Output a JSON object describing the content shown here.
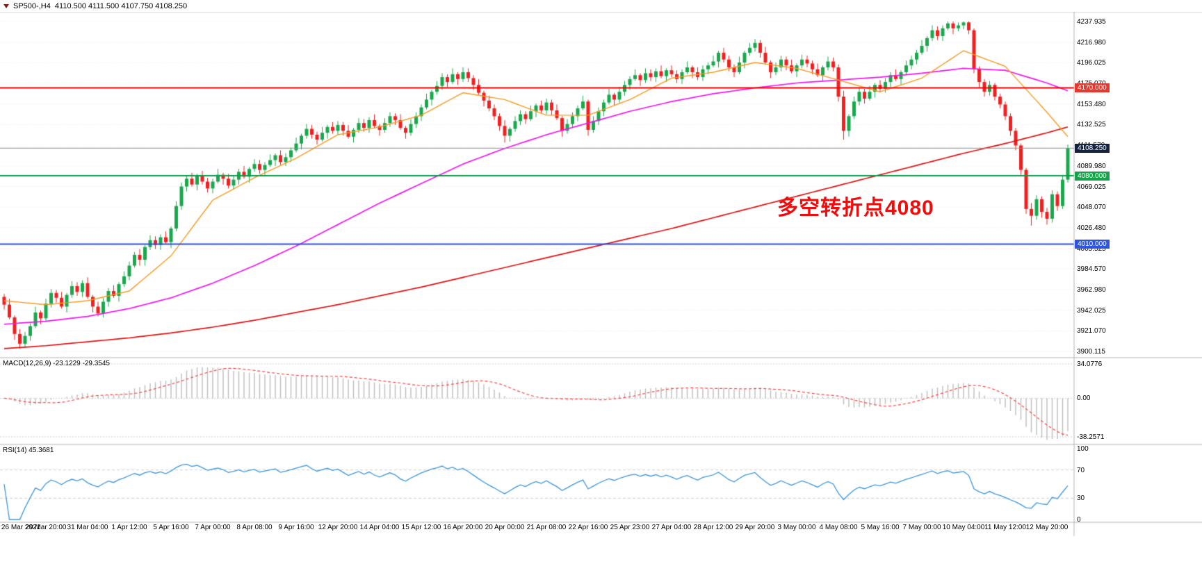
{
  "window": {
    "title_bar": {
      "icon": "chart-symbol-icon",
      "text": "SP500-,H4  4110.500 4111.500 4107.750 4108.250"
    }
  },
  "annotation": {
    "text": "多空转折点4080",
    "color": "#f30b0b"
  },
  "levels": [
    {
      "type": "resistance",
      "price": 4170.0,
      "label": "4170.000",
      "color": "#f00000",
      "tag_color": "#e23a2e",
      "width": 2
    },
    {
      "type": "current-price",
      "price": 4108.25,
      "label": "4108.250",
      "color": "#8c8c8c",
      "tag_color": "#14223d",
      "width": 1
    },
    {
      "type": "pivot",
      "price": 4080.0,
      "label": "4080.000",
      "color": "#009e48",
      "tag_color": "#15a24b",
      "width": 2
    },
    {
      "type": "support",
      "price": 4010.0,
      "label": "4010.000",
      "color": "#2e4fd6",
      "tag_color": "#2e55dd",
      "width": 2
    }
  ],
  "y_axis": {
    "top_price": 4237.935,
    "bottom_price": 3900.115,
    "labels": [
      "4237.935",
      "4216.980",
      "4196.025",
      "4175.070",
      "4153.480",
      "4132.525",
      "4111.570",
      "4089.980",
      "4069.025",
      "4048.070",
      "4026.480",
      "4005.525",
      "3984.570",
      "3962.980",
      "3942.025",
      "3921.070",
      "3900.115"
    ]
  },
  "macd": {
    "label": "MACD(12,26,9) -23.1229 -29.3545",
    "params": [
      12,
      26,
      9
    ],
    "value_main": -23.1229,
    "value_signal": -29.3545,
    "axis_values": [
      34.0776,
      0,
      -38.2571
    ],
    "axis_labels": [
      "34.0776",
      "0.00",
      "-38.2571"
    ],
    "histogram_color": "#bdbdbd",
    "signal_color": "#ff4040"
  },
  "rsi": {
    "label": "RSI(14) 45.3681",
    "period": 14,
    "value": 45.3681,
    "axis_values": [
      100,
      70,
      30,
      0
    ],
    "axis_labels": [
      "100",
      "70",
      "30",
      "0"
    ],
    "levels": [
      70,
      30
    ],
    "line_color": "#3a95da"
  },
  "chart_data": {
    "type": "candlestick",
    "symbol": "SP500-",
    "timeframe": "H4",
    "ohlc_display": {
      "open": "4110.500",
      "high": "4111.500",
      "low": "4107.750",
      "close": "4108.250"
    },
    "price_range": [
      3900.115,
      4237.935
    ],
    "bull_color": "#19a84c",
    "bear_color": "#ef2020",
    "x_labels": [
      "26 Mar 2021",
      "29 Mar 20:00",
      "31 Mar 04:00",
      "1 Apr 12:00",
      "5 Apr 16:00",
      "7 Apr 00:00",
      "8 Apr 08:00",
      "9 Apr 16:00",
      "12 Apr 20:00",
      "14 Apr 04:00",
      "15 Apr 12:00",
      "16 Apr 20:00",
      "20 Apr 00:00",
      "21 Apr 08:00",
      "22 Apr 16:00",
      "25 Apr 23:00",
      "27 Apr 04:00",
      "28 Apr 12:00",
      "29 Apr 20:00",
      "3 May 00:00",
      "4 May 08:00",
      "5 May 16:00",
      "7 May 00:00",
      "10 May 04:00",
      "11 May 12:00",
      "12 May 20:00"
    ],
    "candles_per_x_label": 8,
    "candles": [
      [
        3956,
        3959,
        3943,
        3948
      ],
      [
        3948,
        3954,
        3933,
        3935
      ],
      [
        3935,
        3937,
        3912,
        3918
      ],
      [
        3918,
        3923,
        3903,
        3908
      ],
      [
        3908,
        3920,
        3904,
        3916
      ],
      [
        3916,
        3929,
        3911,
        3926
      ],
      [
        3926,
        3946,
        3924,
        3940
      ],
      [
        3940,
        3942,
        3928,
        3934
      ],
      [
        3934,
        3954,
        3931,
        3949
      ],
      [
        3949,
        3964,
        3945,
        3960
      ],
      [
        3960,
        3963,
        3950,
        3955
      ],
      [
        3955,
        3961,
        3944,
        3946
      ],
      [
        3946,
        3960,
        3940,
        3958
      ],
      [
        3958,
        3972,
        3955,
        3967
      ],
      [
        3967,
        3971,
        3957,
        3961
      ],
      [
        3961,
        3973,
        3956,
        3970
      ],
      [
        3970,
        3976,
        3954,
        3956
      ],
      [
        3956,
        3958,
        3940,
        3946
      ],
      [
        3946,
        3951,
        3936,
        3939
      ],
      [
        3939,
        3955,
        3935,
        3951
      ],
      [
        3951,
        3965,
        3946,
        3962
      ],
      [
        3962,
        3968,
        3955,
        3957
      ],
      [
        3957,
        3971,
        3951,
        3969
      ],
      [
        3969,
        3982,
        3966,
        3977
      ],
      [
        3977,
        3992,
        3973,
        3988
      ],
      [
        3988,
        4002,
        3986,
        3999
      ],
      [
        3999,
        4005,
        3988,
        3994
      ],
      [
        3994,
        4009,
        3988,
        4007
      ],
      [
        4007,
        4019,
        4004,
        4014
      ],
      [
        4014,
        4018,
        4005,
        4009
      ],
      [
        4009,
        4020,
        4004,
        4017
      ],
      [
        4017,
        4023,
        4010,
        4012
      ],
      [
        4012,
        4028,
        4006,
        4026
      ],
      [
        4026,
        4054,
        4023,
        4049
      ],
      [
        4049,
        4073,
        4045,
        4069
      ],
      [
        4069,
        4080,
        4064,
        4077
      ],
      [
        4077,
        4083,
        4069,
        4071
      ],
      [
        4071,
        4082,
        4065,
        4080
      ],
      [
        4080,
        4085,
        4071,
        4074
      ],
      [
        4074,
        4078,
        4063,
        4067
      ],
      [
        4067,
        4077,
        4062,
        4074
      ],
      [
        4074,
        4087,
        4072,
        4081
      ],
      [
        4081,
        4083,
        4071,
        4077
      ],
      [
        4077,
        4082,
        4067,
        4070
      ],
      [
        4070,
        4080,
        4066,
        4076
      ],
      [
        4076,
        4087,
        4071,
        4084
      ],
      [
        4084,
        4090,
        4077,
        4079
      ],
      [
        4079,
        4089,
        4073,
        4087
      ],
      [
        4087,
        4097,
        4084,
        4092
      ],
      [
        4092,
        4096,
        4082,
        4086
      ],
      [
        4086,
        4094,
        4081,
        4091
      ],
      [
        4091,
        4102,
        4089,
        4096
      ],
      [
        4096,
        4103,
        4090,
        4101
      ],
      [
        4101,
        4106,
        4091,
        4094
      ],
      [
        4094,
        4103,
        4090,
        4099
      ],
      [
        4099,
        4109,
        4094,
        4106
      ],
      [
        4106,
        4119,
        4104,
        4113
      ],
      [
        4113,
        4123,
        4107,
        4121
      ],
      [
        4121,
        4133,
        4118,
        4128
      ],
      [
        4128,
        4132,
        4118,
        4122
      ],
      [
        4122,
        4125,
        4112,
        4117
      ],
      [
        4117,
        4130,
        4115,
        4124
      ],
      [
        4124,
        4132,
        4118,
        4130
      ],
      [
        4130,
        4135,
        4123,
        4126
      ],
      [
        4126,
        4136,
        4122,
        4132
      ],
      [
        4132,
        4135,
        4121,
        4126
      ],
      [
        4126,
        4132,
        4118,
        4120
      ],
      [
        4120,
        4129,
        4114,
        4127
      ],
      [
        4127,
        4139,
        4124,
        4134
      ],
      [
        4134,
        4138,
        4125,
        4129
      ],
      [
        4129,
        4140,
        4124,
        4137
      ],
      [
        4137,
        4143,
        4129,
        4131
      ],
      [
        4131,
        4133,
        4121,
        4127
      ],
      [
        4127,
        4139,
        4124,
        4134
      ],
      [
        4134,
        4145,
        4130,
        4141
      ],
      [
        4141,
        4144,
        4132,
        4137
      ],
      [
        4137,
        4143,
        4127,
        4129
      ],
      [
        4129,
        4131,
        4118,
        4124
      ],
      [
        4124,
        4138,
        4121,
        4133
      ],
      [
        4133,
        4145,
        4129,
        4141
      ],
      [
        4141,
        4153,
        4136,
        4150
      ],
      [
        4150,
        4164,
        4148,
        4158
      ],
      [
        4158,
        4168,
        4152,
        4166
      ],
      [
        4166,
        4177,
        4163,
        4172
      ],
      [
        4172,
        4185,
        4168,
        4181
      ],
      [
        4181,
        4184,
        4171,
        4176
      ],
      [
        4176,
        4190,
        4174,
        4184
      ],
      [
        4184,
        4186,
        4173,
        4179
      ],
      [
        4179,
        4191,
        4176,
        4186
      ],
      [
        4186,
        4190,
        4176,
        4180
      ],
      [
        4180,
        4183,
        4168,
        4173
      ],
      [
        4173,
        4179,
        4163,
        4165
      ],
      [
        4165,
        4167,
        4151,
        4157
      ],
      [
        4157,
        4162,
        4146,
        4149
      ],
      [
        4149,
        4153,
        4137,
        4141
      ],
      [
        4141,
        4144,
        4126,
        4131
      ],
      [
        4131,
        4137,
        4114,
        4121
      ],
      [
        4121,
        4130,
        4115,
        4128
      ],
      [
        4128,
        4141,
        4125,
        4136
      ],
      [
        4136,
        4147,
        4132,
        4143
      ],
      [
        4143,
        4146,
        4133,
        4138
      ],
      [
        4138,
        4152,
        4136,
        4146
      ],
      [
        4146,
        4154,
        4140,
        4152
      ],
      [
        4152,
        4157,
        4144,
        4147
      ],
      [
        4147,
        4159,
        4143,
        4155
      ],
      [
        4155,
        4158,
        4142,
        4147
      ],
      [
        4147,
        4153,
        4137,
        4139
      ],
      [
        4139,
        4141,
        4120,
        4126
      ],
      [
        4126,
        4138,
        4123,
        4133
      ],
      [
        4133,
        4145,
        4129,
        4141
      ],
      [
        4141,
        4152,
        4136,
        4149
      ],
      [
        4149,
        4162,
        4147,
        4156
      ],
      [
        4156,
        4158,
        4121,
        4127
      ],
      [
        4127,
        4141,
        4124,
        4136
      ],
      [
        4136,
        4150,
        4132,
        4146
      ],
      [
        4146,
        4158,
        4141,
        4155
      ],
      [
        4155,
        4169,
        4153,
        4163
      ],
      [
        4163,
        4165,
        4152,
        4158
      ],
      [
        4158,
        4171,
        4155,
        4166
      ],
      [
        4166,
        4177,
        4162,
        4173
      ],
      [
        4173,
        4182,
        4168,
        4179
      ],
      [
        4179,
        4189,
        4177,
        4183
      ],
      [
        4183,
        4185,
        4172,
        4178
      ],
      [
        4178,
        4190,
        4175,
        4185
      ],
      [
        4185,
        4189,
        4177,
        4181
      ],
      [
        4181,
        4190,
        4176,
        4187
      ],
      [
        4187,
        4193,
        4180,
        4182
      ],
      [
        4182,
        4190,
        4176,
        4188
      ],
      [
        4188,
        4193,
        4181,
        4184
      ],
      [
        4184,
        4188,
        4175,
        4179
      ],
      [
        4179,
        4189,
        4174,
        4186
      ],
      [
        4186,
        4197,
        4184,
        4191
      ],
      [
        4191,
        4193,
        4180,
        4186
      ],
      [
        4186,
        4191,
        4178,
        4181
      ],
      [
        4181,
        4193,
        4177,
        4189
      ],
      [
        4189,
        4196,
        4184,
        4193
      ],
      [
        4193,
        4203,
        4191,
        4197
      ],
      [
        4197,
        4208,
        4191,
        4206
      ],
      [
        4206,
        4211,
        4196,
        4199
      ],
      [
        4199,
        4203,
        4187,
        4191
      ],
      [
        4191,
        4194,
        4181,
        4186
      ],
      [
        4186,
        4202,
        4184,
        4196
      ],
      [
        4196,
        4208,
        4190,
        4206
      ],
      [
        4206,
        4216,
        4203,
        4211
      ],
      [
        4211,
        4220,
        4207,
        4216
      ],
      [
        4216,
        4219,
        4201,
        4206
      ],
      [
        4206,
        4212,
        4194,
        4196
      ],
      [
        4196,
        4198,
        4180,
        4186
      ],
      [
        4186,
        4196,
        4183,
        4191
      ],
      [
        4191,
        4203,
        4187,
        4199
      ],
      [
        4199,
        4202,
        4188,
        4193
      ],
      [
        4193,
        4199,
        4185,
        4187
      ],
      [
        4187,
        4195,
        4181,
        4193
      ],
      [
        4193,
        4204,
        4190,
        4199
      ],
      [
        4199,
        4203,
        4191,
        4195
      ],
      [
        4195,
        4198,
        4184,
        4189
      ],
      [
        4189,
        4195,
        4181,
        4183
      ],
      [
        4183,
        4193,
        4177,
        4191
      ],
      [
        4191,
        4202,
        4188,
        4197
      ],
      [
        4197,
        4201,
        4187,
        4191
      ],
      [
        4191,
        4194,
        4156,
        4161
      ],
      [
        4161,
        4167,
        4117,
        4126
      ],
      [
        4126,
        4143,
        4120,
        4141
      ],
      [
        4141,
        4161,
        4138,
        4156
      ],
      [
        4156,
        4170,
        4152,
        4166
      ],
      [
        4166,
        4169,
        4154,
        4159
      ],
      [
        4159,
        4172,
        4157,
        4166
      ],
      [
        4166,
        4175,
        4160,
        4173
      ],
      [
        4173,
        4178,
        4166,
        4169
      ],
      [
        4169,
        4180,
        4165,
        4176
      ],
      [
        4176,
        4186,
        4171,
        4183
      ],
      [
        4183,
        4189,
        4177,
        4179
      ],
      [
        4179,
        4188,
        4173,
        4186
      ],
      [
        4186,
        4198,
        4183,
        4193
      ],
      [
        4193,
        4203,
        4189,
        4199
      ],
      [
        4199,
        4209,
        4194,
        4206
      ],
      [
        4206,
        4219,
        4204,
        4213
      ],
      [
        4213,
        4223,
        4207,
        4221
      ],
      [
        4221,
        4234,
        4218,
        4229
      ],
      [
        4229,
        4233,
        4219,
        4223
      ],
      [
        4223,
        4234,
        4218,
        4231
      ],
      [
        4231,
        4238,
        4229,
        4236
      ],
      [
        4236,
        4238,
        4225,
        4231
      ],
      [
        4231,
        4237,
        4228,
        4234
      ],
      [
        4234,
        4238,
        4230,
        4237
      ],
      [
        4237,
        4238,
        4225,
        4229
      ],
      [
        4229,
        4231,
        4185,
        4189
      ],
      [
        4189,
        4192,
        4170,
        4176
      ],
      [
        4176,
        4179,
        4161,
        4166
      ],
      [
        4166,
        4177,
        4162,
        4173
      ],
      [
        4173,
        4175,
        4157,
        4161
      ],
      [
        4161,
        4164,
        4149,
        4153
      ],
      [
        4153,
        4156,
        4137,
        4141
      ],
      [
        4141,
        4144,
        4121,
        4126
      ],
      [
        4126,
        4129,
        4106,
        4111
      ],
      [
        4111,
        4113,
        4081,
        4086
      ],
      [
        4086,
        4088,
        4041,
        4046
      ],
      [
        4046,
        4052,
        4029,
        4039
      ],
      [
        4039,
        4060,
        4035,
        4056
      ],
      [
        4056,
        4059,
        4037,
        4043
      ],
      [
        4043,
        4047,
        4030,
        4036
      ],
      [
        4036,
        4065,
        4032,
        4061
      ],
      [
        4061,
        4064,
        4044,
        4049
      ],
      [
        4049,
        4080,
        4046,
        4076
      ],
      [
        4076,
        4112,
        4073,
        4108.25
      ]
    ],
    "moving_averages": [
      {
        "name": "fast-ma",
        "color": "#f79a1f",
        "anchor_step": 8,
        "values": [
          3952,
          3948,
          3952,
          3962,
          3998,
          4055,
          4078,
          4098,
          4122,
          4130,
          4142,
          4165,
          4158,
          4142,
          4142,
          4158,
          4180,
          4186,
          4196,
          4190,
          4178,
          4166,
          4180,
          4208,
          4192,
          4145,
          4120
        ]
      },
      {
        "name": "medium-ma",
        "color": "#f015f0",
        "anchor_step": 8,
        "values": [
          3928,
          3931,
          3936,
          3944,
          3955,
          3970,
          3988,
          4008,
          4030,
          4052,
          4072,
          4092,
          4108,
          4122,
          4134,
          4146,
          4156,
          4164,
          4170,
          4175,
          4178,
          4181,
          4185,
          4190,
          4188,
          4175,
          4167
        ]
      },
      {
        "name": "slow-ma",
        "color": "#e01010",
        "anchor_step": 8,
        "values": [
          3903,
          3906,
          3910,
          3914,
          3919,
          3925,
          3932,
          3940,
          3948,
          3957,
          3966,
          3976,
          3986,
          3996,
          4006,
          4016,
          4026,
          4037,
          4048,
          4059,
          4070,
          4081,
          4092,
          4103,
          4113,
          4124,
          4130
        ]
      }
    ]
  }
}
